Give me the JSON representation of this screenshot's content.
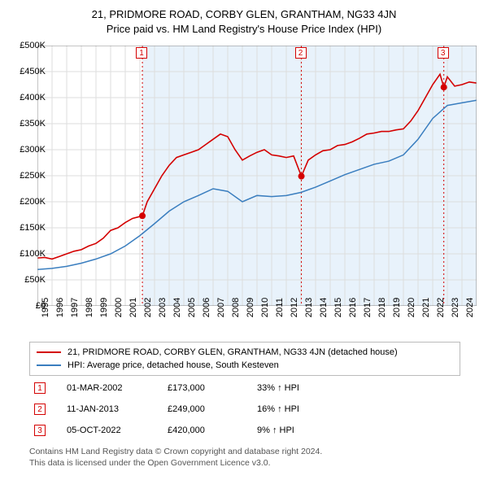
{
  "title": "21, PRIDMORE ROAD, CORBY GLEN, GRANTHAM, NG33 4JN",
  "subtitle": "Price paid vs. HM Land Registry's House Price Index (HPI)",
  "chart": {
    "type": "line",
    "plot_bg": "#ffffff",
    "shaded_bg": "#e8f2fb",
    "grid_color": "#dddddd",
    "ylim": [
      0,
      500000
    ],
    "ytick_step": 50000,
    "yticks": [
      "£0",
      "£50K",
      "£100K",
      "£150K",
      "£200K",
      "£250K",
      "£300K",
      "£350K",
      "£400K",
      "£450K",
      "£500K"
    ],
    "xlim": [
      1995,
      2025
    ],
    "xticks": [
      1995,
      1996,
      1997,
      1998,
      1999,
      2000,
      2001,
      2002,
      2003,
      2004,
      2005,
      2006,
      2007,
      2008,
      2009,
      2010,
      2011,
      2012,
      2013,
      2014,
      2015,
      2016,
      2017,
      2018,
      2019,
      2020,
      2021,
      2022,
      2023,
      2024
    ],
    "series": [
      {
        "name": "property",
        "label": "21, PRIDMORE ROAD, CORBY GLEN, GRANTHAM, NG33 4JN (detached house)",
        "color": "#d40000",
        "width": 1.6,
        "data": [
          [
            1995,
            92000
          ],
          [
            1995.5,
            93000
          ],
          [
            1996,
            90000
          ],
          [
            1996.5,
            95000
          ],
          [
            1997,
            100000
          ],
          [
            1997.5,
            105000
          ],
          [
            1998,
            108000
          ],
          [
            1998.5,
            115000
          ],
          [
            1999,
            120000
          ],
          [
            1999.5,
            130000
          ],
          [
            2000,
            145000
          ],
          [
            2000.5,
            150000
          ],
          [
            2001,
            160000
          ],
          [
            2001.5,
            168000
          ],
          [
            2002.17,
            173000
          ],
          [
            2002.5,
            200000
          ],
          [
            2003,
            225000
          ],
          [
            2003.5,
            250000
          ],
          [
            2004,
            270000
          ],
          [
            2004.5,
            285000
          ],
          [
            2005,
            290000
          ],
          [
            2005.5,
            295000
          ],
          [
            2006,
            300000
          ],
          [
            2006.5,
            310000
          ],
          [
            2007,
            320000
          ],
          [
            2007.5,
            330000
          ],
          [
            2008,
            325000
          ],
          [
            2008.5,
            300000
          ],
          [
            2009,
            280000
          ],
          [
            2009.5,
            288000
          ],
          [
            2010,
            295000
          ],
          [
            2010.5,
            300000
          ],
          [
            2011,
            290000
          ],
          [
            2011.5,
            288000
          ],
          [
            2012,
            285000
          ],
          [
            2012.5,
            288000
          ],
          [
            2013.03,
            249000
          ],
          [
            2013.5,
            280000
          ],
          [
            2014,
            290000
          ],
          [
            2014.5,
            298000
          ],
          [
            2015,
            300000
          ],
          [
            2015.5,
            308000
          ],
          [
            2016,
            310000
          ],
          [
            2016.5,
            315000
          ],
          [
            2017,
            322000
          ],
          [
            2017.5,
            330000
          ],
          [
            2018,
            332000
          ],
          [
            2018.5,
            335000
          ],
          [
            2019,
            335000
          ],
          [
            2019.5,
            338000
          ],
          [
            2020,
            340000
          ],
          [
            2020.5,
            355000
          ],
          [
            2021,
            375000
          ],
          [
            2021.5,
            400000
          ],
          [
            2022,
            425000
          ],
          [
            2022.5,
            445000
          ],
          [
            2022.76,
            420000
          ],
          [
            2023,
            440000
          ],
          [
            2023.5,
            422000
          ],
          [
            2024,
            425000
          ],
          [
            2024.5,
            430000
          ],
          [
            2025,
            428000
          ]
        ]
      },
      {
        "name": "hpi",
        "label": "HPI: Average price, detached house, South Kesteven",
        "color": "#3a7ebf",
        "width": 1.5,
        "data": [
          [
            1995,
            70000
          ],
          [
            1996,
            72000
          ],
          [
            1997,
            76000
          ],
          [
            1998,
            82000
          ],
          [
            1999,
            90000
          ],
          [
            2000,
            100000
          ],
          [
            2001,
            115000
          ],
          [
            2002,
            135000
          ],
          [
            2003,
            158000
          ],
          [
            2004,
            182000
          ],
          [
            2005,
            200000
          ],
          [
            2006,
            212000
          ],
          [
            2007,
            225000
          ],
          [
            2008,
            220000
          ],
          [
            2009,
            200000
          ],
          [
            2010,
            212000
          ],
          [
            2011,
            210000
          ],
          [
            2012,
            212000
          ],
          [
            2013,
            218000
          ],
          [
            2014,
            228000
          ],
          [
            2015,
            240000
          ],
          [
            2016,
            252000
          ],
          [
            2017,
            262000
          ],
          [
            2018,
            272000
          ],
          [
            2019,
            278000
          ],
          [
            2020,
            290000
          ],
          [
            2021,
            320000
          ],
          [
            2022,
            360000
          ],
          [
            2023,
            385000
          ],
          [
            2024,
            390000
          ],
          [
            2025,
            395000
          ]
        ]
      }
    ],
    "sale_markers": [
      {
        "n": "1",
        "year": 2002.17,
        "price": 173000,
        "line_color": "#d40000",
        "dot_color": "#d40000"
      },
      {
        "n": "2",
        "year": 2013.03,
        "price": 249000,
        "line_color": "#d40000",
        "dot_color": "#d40000"
      },
      {
        "n": "3",
        "year": 2022.76,
        "price": 420000,
        "line_color": "#d40000",
        "dot_color": "#d40000"
      }
    ],
    "shaded_from_year": 2002.17
  },
  "legend": [
    {
      "color": "#d40000",
      "label": "21, PRIDMORE ROAD, CORBY GLEN, GRANTHAM, NG33 4JN (detached house)"
    },
    {
      "color": "#3a7ebf",
      "label": "HPI: Average price, detached house, South Kesteven"
    }
  ],
  "sales": [
    {
      "n": "1",
      "color": "#d40000",
      "date": "01-MAR-2002",
      "price": "£173,000",
      "pct": "33% ↑ HPI"
    },
    {
      "n": "2",
      "color": "#d40000",
      "date": "11-JAN-2013",
      "price": "£249,000",
      "pct": "16% ↑ HPI"
    },
    {
      "n": "3",
      "color": "#d40000",
      "date": "05-OCT-2022",
      "price": "£420,000",
      "pct": "9% ↑ HPI"
    }
  ],
  "footer1": "Contains HM Land Registry data © Crown copyright and database right 2024.",
  "footer2": "This data is licensed under the Open Government Licence v3.0."
}
